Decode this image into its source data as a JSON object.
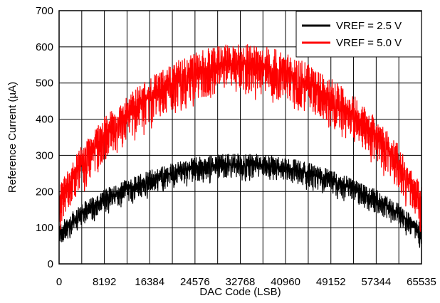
{
  "chart_data": {
    "type": "line",
    "title": "",
    "xlabel": "DAC Code (LSB)",
    "ylabel": "Reference Current (µA)",
    "xlim": [
      0,
      65535
    ],
    "ylim": [
      0,
      700
    ],
    "x_ticks": [
      0,
      8192,
      16384,
      24576,
      32768,
      40960,
      49152,
      57344,
      65535
    ],
    "x_tick_labels": [
      "0",
      "8192",
      "16384",
      "24576",
      "32768",
      "40960",
      "49152",
      "57344",
      "65535"
    ],
    "y_ticks": [
      0,
      100,
      200,
      300,
      400,
      500,
      600,
      700
    ],
    "y_tick_labels": [
      "0",
      "100",
      "200",
      "300",
      "400",
      "500",
      "600",
      "700"
    ],
    "grid": true,
    "x_minor_gridlines": 16,
    "legend_position": "top-right",
    "series": [
      {
        "name": "VREF = 2.5 V",
        "color": "#000000",
        "x": [
          0,
          4096,
          8192,
          12288,
          16384,
          20480,
          24576,
          28672,
          32768,
          36864,
          40960,
          45056,
          49152,
          53248,
          57344,
          61440,
          65535
        ],
        "mean": [
          85,
          140,
          178,
          208,
          232,
          252,
          266,
          275,
          278,
          275,
          266,
          252,
          232,
          208,
          178,
          140,
          85
        ],
        "spread_high": [
          25,
          26,
          27,
          27,
          28,
          28,
          28,
          28,
          28,
          28,
          28,
          28,
          28,
          27,
          27,
          26,
          25
        ],
        "spread_low": [
          35,
          36,
          37,
          38,
          38,
          38,
          38,
          38,
          38,
          38,
          38,
          38,
          38,
          38,
          37,
          36,
          35
        ]
      },
      {
        "name": "VREF = 5.0 V",
        "color": "#ff0000",
        "x": [
          0,
          4096,
          8192,
          12288,
          16384,
          20480,
          24576,
          28672,
          32768,
          36864,
          40960,
          45056,
          49152,
          53248,
          57344,
          61440,
          65535
        ],
        "mean": [
          170,
          280,
          355,
          415,
          462,
          500,
          530,
          548,
          555,
          548,
          530,
          500,
          462,
          415,
          355,
          280,
          170
        ],
        "spread_high": [
          45,
          48,
          50,
          52,
          53,
          54,
          55,
          55,
          55,
          55,
          55,
          54,
          53,
          52,
          50,
          48,
          45
        ],
        "spread_low": [
          65,
          68,
          70,
          72,
          74,
          75,
          75,
          75,
          75,
          75,
          75,
          75,
          74,
          72,
          70,
          68,
          65
        ]
      }
    ]
  }
}
